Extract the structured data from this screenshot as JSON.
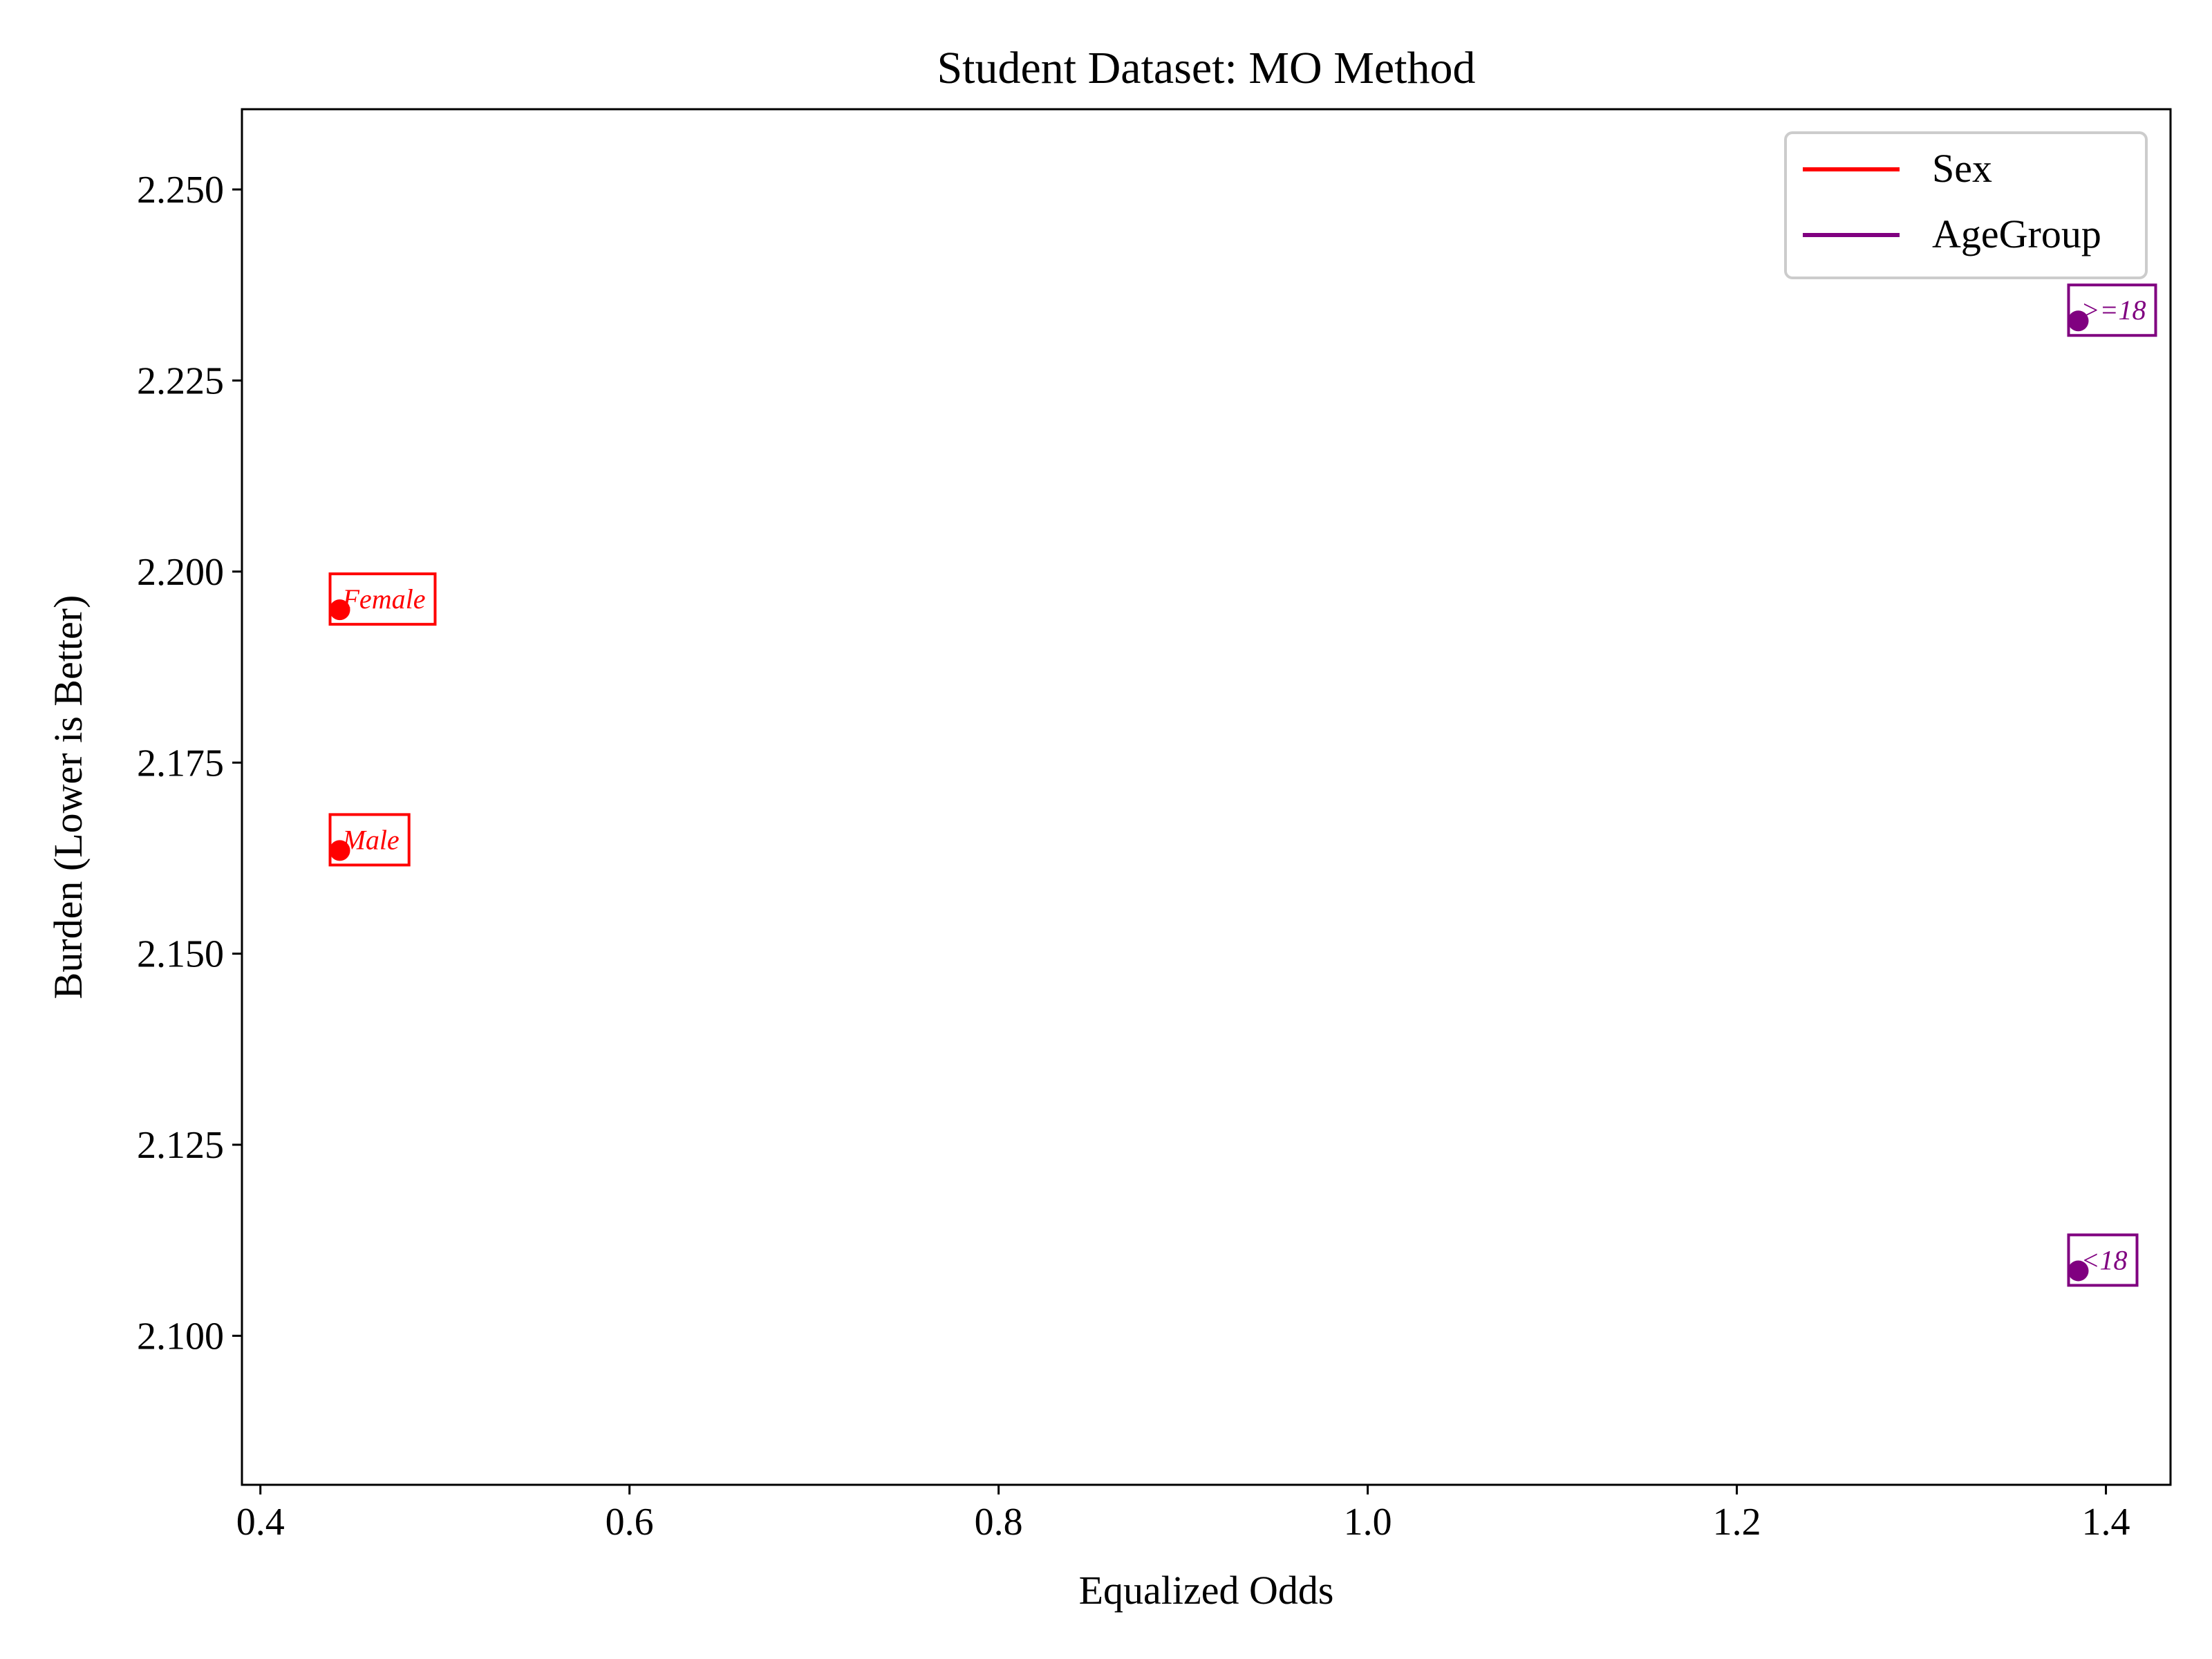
{
  "chart_data": {
    "type": "scatter",
    "title": "Student Dataset: MO Method",
    "xlabel": "Equalized Odds",
    "ylabel": "Burden (Lower is Better)",
    "xlim": [
      0.39,
      1.435
    ],
    "ylim": [
      2.0805,
      2.2605
    ],
    "xticks": [
      0.4,
      0.6,
      0.8,
      1.0,
      1.2,
      1.4
    ],
    "xtick_labels": [
      "0.4",
      "0.6",
      "0.8",
      "1.0",
      "1.2",
      "1.4"
    ],
    "yticks": [
      2.1,
      2.125,
      2.15,
      2.175,
      2.2,
      2.225,
      2.25
    ],
    "ytick_labels": [
      "2.100",
      "2.125",
      "2.150",
      "2.175",
      "2.200",
      "2.225",
      "2.250"
    ],
    "grid": false,
    "legend_position": "top-right",
    "series": [
      {
        "name": "Sex",
        "color": "#ff0000",
        "points": [
          {
            "label": "Female",
            "x": 0.443,
            "y": 2.195
          },
          {
            "label": "Male",
            "x": 0.443,
            "y": 2.1635
          }
        ]
      },
      {
        "name": "AgeGroup",
        "color": "#800080",
        "points": [
          {
            "label": ">=18",
            "x": 1.385,
            "y": 2.2328
          },
          {
            "label": "<18",
            "x": 1.385,
            "y": 2.1085
          }
        ]
      }
    ]
  }
}
